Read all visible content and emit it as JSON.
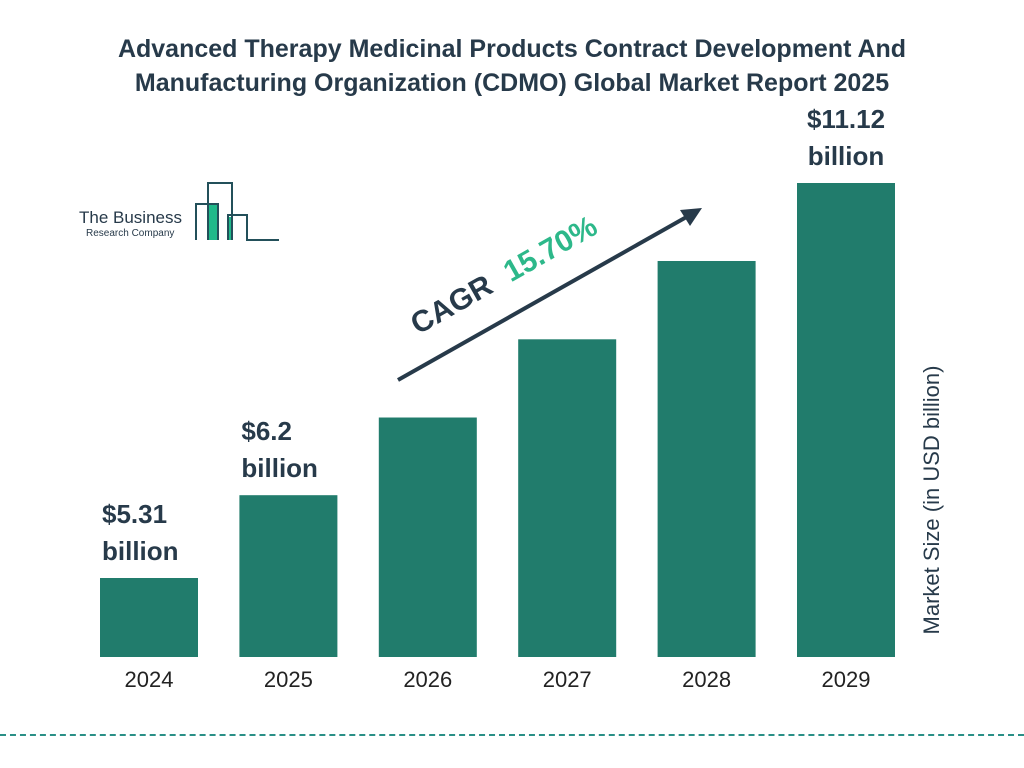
{
  "chart_data": {
    "type": "bar",
    "title": "Advanced Therapy Medicinal Products Contract Development And Manufacturing Organization (CDMO) Global Market Report 2025",
    "ylabel": "Market Size (in USD billion)",
    "xlabel": "",
    "categories": [
      "2024",
      "2025",
      "2026",
      "2027",
      "2028",
      "2029"
    ],
    "values": [
      5.31,
      6.2,
      7.17,
      8.3,
      9.61,
      11.12
    ],
    "data_labels": [
      {
        "index": 0,
        "value": "$5.31",
        "unit": "billion"
      },
      {
        "index": 1,
        "value": "$6.2",
        "unit": "billion"
      },
      {
        "index": 5,
        "value": "$11.12",
        "unit": "billion"
      }
    ],
    "annotation": {
      "label": "CAGR",
      "value": "15.70%"
    },
    "grid": false,
    "colors": {
      "bar": "#217c6c",
      "text": "#273a4a",
      "cagr": "#2db88a",
      "logo_accent": "#20b98a"
    }
  },
  "logo": {
    "line1": "The Business",
    "line2": "Research Company"
  }
}
